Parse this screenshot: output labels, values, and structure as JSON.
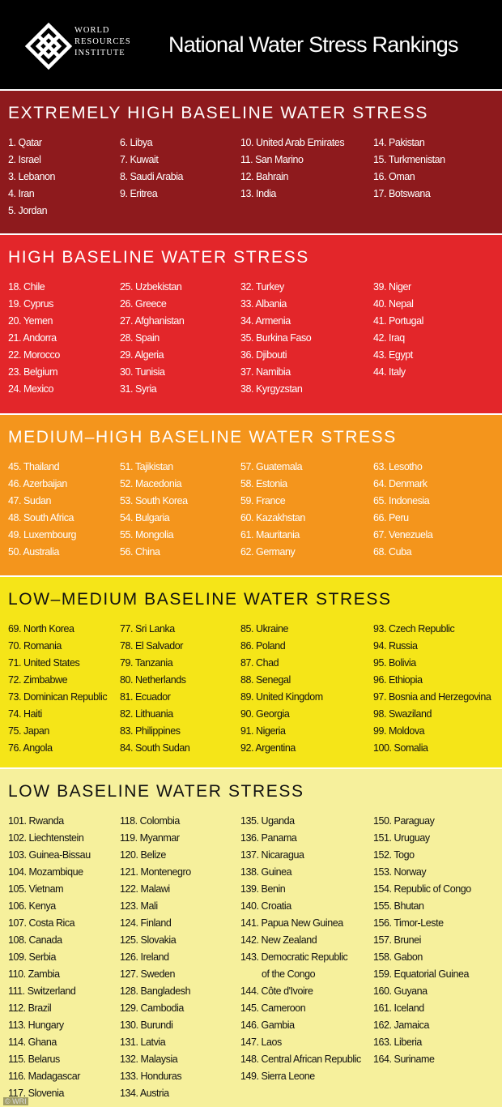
{
  "header": {
    "logo": [
      "WORLD",
      "RESOURCES",
      "INSTITUTE"
    ],
    "title": "National Water Stress Rankings"
  },
  "sections": [
    {
      "title": "EXTREMELY HIGH BASELINE WATER STRESS",
      "columns": [
        [
          "1. Qatar",
          "2. Israel",
          "3. Lebanon",
          "4. Iran",
          "5. Jordan"
        ],
        [
          "6. Libya",
          "7. Kuwait",
          "8. Saudi Arabia",
          "9. Eritrea"
        ],
        [
          "10. United Arab Emirates",
          "11. San Marino",
          "12. Bahrain",
          "13. India"
        ],
        [
          "14. Pakistan",
          "15. Turkmenistan",
          "16. Oman",
          "17. Botswana"
        ]
      ]
    },
    {
      "title": "HIGH BASELINE WATER STRESS",
      "columns": [
        [
          "18. Chile",
          "19. Cyprus",
          "20. Yemen",
          "21. Andorra",
          "22. Morocco",
          "23. Belgium",
          "24. Mexico"
        ],
        [
          "25. Uzbekistan",
          "26. Greece",
          "27. Afghanistan",
          "28. Spain",
          "29. Algeria",
          "30. Tunisia",
          "31. Syria"
        ],
        [
          "32. Turkey",
          "33. Albania",
          "34. Armenia",
          "35. Burkina Faso",
          "36. Djibouti",
          "37. Namibia",
          "38. Kyrgyzstan"
        ],
        [
          "39. Niger",
          "40. Nepal",
          "41. Portugal",
          "42. Iraq",
          "43. Egypt",
          "44. Italy"
        ]
      ]
    },
    {
      "title": "MEDIUM–HIGH BASELINE WATER STRESS",
      "columns": [
        [
          "45. Thailand",
          "46. Azerbaijan",
          "47. Sudan",
          "48. South Africa",
          "49. Luxembourg",
          "50. Australia"
        ],
        [
          "51. Tajikistan",
          "52. Macedonia",
          "53. South Korea",
          "54. Bulgaria",
          "55. Mongolia",
          "56. China"
        ],
        [
          "57. Guatemala",
          "58. Estonia",
          "59. France",
          "60. Kazakhstan",
          "61. Mauritania",
          "62. Germany"
        ],
        [
          "63. Lesotho",
          "64. Denmark",
          "65. Indonesia",
          "66. Peru",
          "67. Venezuela",
          "68. Cuba"
        ]
      ]
    },
    {
      "title": "LOW–MEDIUM BASELINE WATER STRESS",
      "columns": [
        [
          "69. North Korea",
          "70. Romania",
          "71. United States",
          "72. Zimbabwe",
          "73. Dominican Republic",
          "74. Haiti",
          "75. Japan",
          "76. Angola"
        ],
        [
          "77. Sri Lanka",
          "78. El Salvador",
          "79. Tanzania",
          "80. Netherlands",
          "81. Ecuador",
          "82. Lithuania",
          "83. Philippines",
          "84. South Sudan"
        ],
        [
          "85. Ukraine",
          "86. Poland",
          "87. Chad",
          "88. Senegal",
          "89. United Kingdom",
          "90. Georgia",
          "91. Nigeria",
          "92. Argentina"
        ],
        [
          "93. Czech Republic",
          "94. Russia",
          "95. Bolivia",
          "96. Ethiopia",
          "97. Bosnia and Herzegovina",
          "98. Swaziland",
          "99. Moldova",
          "100. Somalia"
        ]
      ]
    },
    {
      "title": "LOW BASELINE WATER STRESS",
      "columns": [
        [
          "101. Rwanda",
          "102. Liechtenstein",
          "103. Guinea-Bissau",
          "104. Mozambique",
          "105. Vietnam",
          "106. Kenya",
          "107. Costa Rica",
          "108. Canada",
          "109. Serbia",
          "110. Zambia",
          "111. Switzerland",
          "112. Brazil",
          "113. Hungary",
          "114. Ghana",
          "115. Belarus",
          "116. Madagascar",
          "117. Slovenia"
        ],
        [
          "118. Colombia",
          "119. Myanmar",
          "120. Belize",
          "121. Montenegro",
          "122. Malawi",
          "123. Mali",
          "124. Finland",
          "125. Slovakia",
          "126. Ireland",
          "127. Sweden",
          "128. Bangladesh",
          "129. Cambodia",
          "130. Burundi",
          "131. Latvia",
          "132. Malaysia",
          "133. Honduras",
          "134. Austria"
        ],
        [
          "135. Uganda",
          "136. Panama",
          "137. Nicaragua",
          "138. Guinea",
          "139. Benin",
          "140. Croatia",
          "141. Papua New Guinea",
          "142. New Zealand",
          "143. Democratic Republic\nof the Congo",
          "144. Côte d'Ivoire",
          "145. Cameroon",
          "146. Gambia",
          "147. Laos",
          "148. Central African Republic",
          "149. Sierra Leone"
        ],
        [
          "150. Paraguay",
          "151. Uruguay",
          "152. Togo",
          "153. Norway",
          "154. Republic of Congo",
          "155. Bhutan",
          "156. Timor-Leste",
          "157. Brunei",
          "158. Gabon",
          "159. Equatorial Guinea",
          "160. Guyana",
          "161. Iceland",
          "162. Jamaica",
          "163. Liberia",
          "164. Suriname"
        ]
      ]
    }
  ],
  "footer": {
    "credit": "© WRI"
  }
}
